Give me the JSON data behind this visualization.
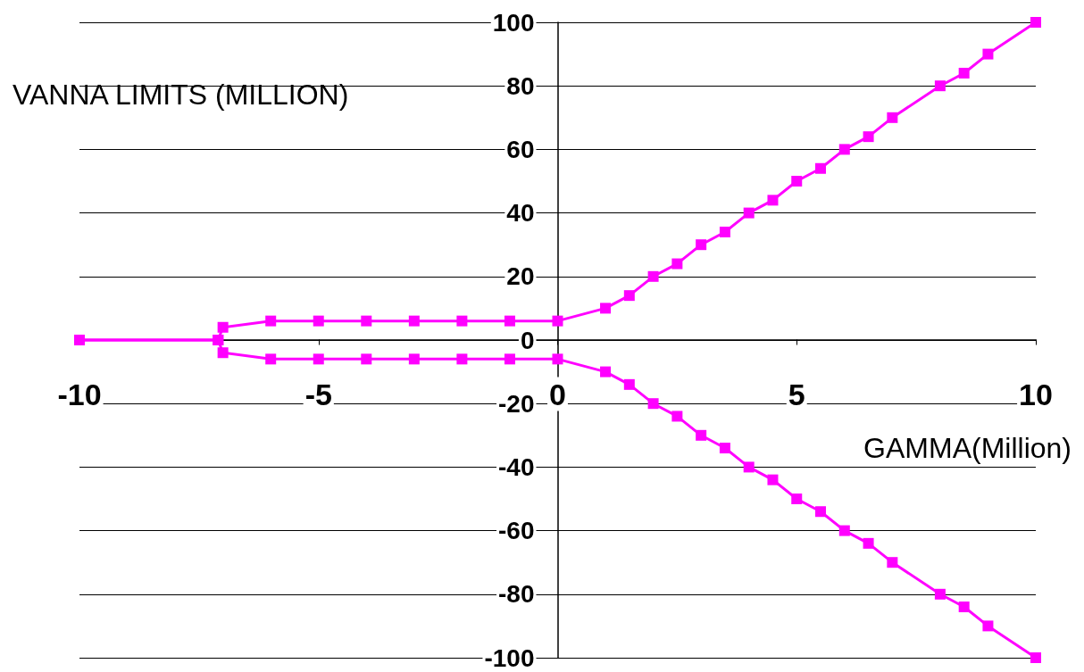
{
  "chart_data": {
    "type": "line",
    "xlabel": "GAMMA(Million)",
    "ylabel": "VANNA LIMITS (MILLION)",
    "series": [
      {
        "color": "#ff00ff",
        "x": [
          -10,
          -7.1,
          -7,
          -6,
          -5,
          -4,
          -3,
          -2,
          -1,
          0,
          1,
          1.5,
          2,
          2.5,
          3,
          3.5,
          4,
          4.5,
          5,
          5.5,
          6,
          6.5,
          7,
          8,
          8.5,
          9,
          10
        ],
        "values": [
          0,
          0,
          4,
          6,
          6,
          6,
          6,
          6,
          6,
          6,
          10,
          14,
          20,
          24,
          30,
          34,
          40,
          44,
          50,
          54,
          60,
          64,
          70,
          80,
          84,
          90,
          100
        ]
      },
      {
        "color": "#ff00ff",
        "x": [
          -10,
          -7.1,
          -7,
          -6,
          -5,
          -4,
          -3,
          -2,
          -1,
          0,
          1,
          1.5,
          2,
          2.5,
          3,
          3.5,
          4,
          4.5,
          5,
          5.5,
          6,
          6.5,
          7,
          8,
          8.5,
          9,
          10
        ],
        "values": [
          0,
          0,
          -4,
          -6,
          -6,
          -6,
          -6,
          -6,
          -6,
          -6,
          -10,
          -14,
          -20,
          -24,
          -30,
          -34,
          -40,
          -44,
          -50,
          -54,
          -60,
          -64,
          -70,
          -80,
          -84,
          -90,
          -100
        ]
      }
    ],
    "xlim": [
      -10,
      10
    ],
    "xticks": [
      -10,
      -5,
      0,
      5,
      10
    ],
    "ylim": [
      -100,
      100
    ],
    "yticks": [
      -100,
      -80,
      -60,
      -40,
      -20,
      0,
      20,
      40,
      60,
      80,
      100
    ],
    "grid": "y",
    "marker": "square",
    "line_style": "solid"
  }
}
